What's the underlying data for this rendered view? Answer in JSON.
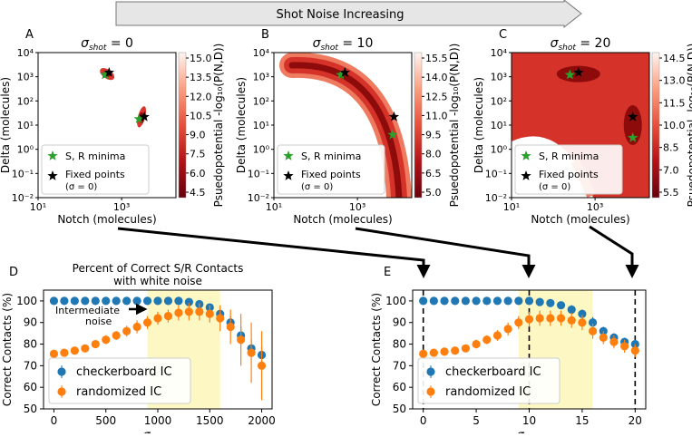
{
  "banner": {
    "label": "Shot Noise Increasing"
  },
  "heatmap_cbar_label": "Psuedopotential -log₁₀(P(N,D))",
  "heatmap_xlabel": "Notch (molecules)",
  "heatmap_ylabel": "Delta (molecules)",
  "heatmap_legend": {
    "sr": "S, R minima",
    "fixed": "Fixed points",
    "fixed_sub": "(σ = 0)"
  },
  "colors": {
    "blue": "#1f77b4",
    "orange": "#ff7f0e",
    "yellow": "#fdf7c3",
    "star_green": "#2ca02c",
    "star_black": "#000000",
    "heat_dark": "#8e0b0b",
    "heat_light": "#fde4d8"
  },
  "chart_data": [
    {
      "type": "heatmap",
      "panel": "A",
      "title": "σshot = 0",
      "xlabel": "Notch (molecules)",
      "ylabel": "Delta (molecules)",
      "x_ticks": [
        "10¹",
        "10³"
      ],
      "y_ticks": [
        "10⁻²",
        "10⁻¹",
        "10⁰",
        "10¹",
        "10²",
        "10³",
        "10⁴"
      ],
      "colorbar_ticks": [
        "15.0",
        "13.5",
        "12.0",
        "10.5",
        "9.0",
        "7.5",
        "6.0",
        "4.5"
      ],
      "sr_minima": [
        [
          400,
          1200
        ],
        [
          2600,
          18
        ]
      ],
      "fixed_points": [
        [
          500,
          1500
        ],
        [
          3500,
          22
        ]
      ]
    },
    {
      "type": "heatmap",
      "panel": "B",
      "title": "σshot = 10",
      "xlabel": "Notch (molecules)",
      "ylabel": "Delta (molecules)",
      "x_ticks": [
        "10¹",
        "10³"
      ],
      "y_ticks": [
        "10⁻²",
        "10⁻¹",
        "10⁰",
        "10¹",
        "10²",
        "10³",
        "10⁴"
      ],
      "colorbar_ticks": [
        "15.5",
        "14.0",
        "12.5",
        "11.0",
        "9.5",
        "8.0",
        "6.5",
        "5.0"
      ],
      "sr_minima": [
        [
          400,
          1200
        ],
        [
          7000,
          4
        ]
      ],
      "fixed_points": [
        [
          500,
          1500
        ],
        [
          7500,
          22
        ]
      ]
    },
    {
      "type": "heatmap",
      "panel": "C",
      "title": "σshot = 20",
      "xlabel": "Notch (molecules)",
      "ylabel": "Delta (molecules)",
      "x_ticks": [
        "10¹",
        "10³"
      ],
      "y_ticks": [
        "10⁻²",
        "10⁻¹",
        "10⁰",
        "10¹",
        "10²",
        "10³",
        "10⁴"
      ],
      "colorbar_ticks": [
        "14.5",
        "13.0",
        "11.5",
        "10.0",
        "8.5",
        "7.0",
        "5.5"
      ],
      "sr_minima": [
        [
          250,
          1200
        ],
        [
          8000,
          3
        ]
      ],
      "fixed_points": [
        [
          400,
          1500
        ],
        [
          8000,
          22
        ]
      ]
    },
    {
      "type": "scatter",
      "panel": "D",
      "title": "Percent of Correct S/R Contacts",
      "subtitle": "with white noise",
      "xlabel": "σwhite",
      "ylabel": "Correct Contacts (%)",
      "xlim": [
        -100,
        2100
      ],
      "ylim": [
        50,
        105
      ],
      "x_ticks": [
        0,
        500,
        1000,
        1500,
        2000
      ],
      "y_ticks": [
        50,
        60,
        70,
        80,
        90,
        100
      ],
      "shaded_region": [
        900,
        1600
      ],
      "annotation": [
        "Intermediate",
        "noise"
      ],
      "legend": [
        "checkerboard IC",
        "randomized IC"
      ],
      "series": [
        {
          "name": "checkerboard IC",
          "x": [
            0,
            100,
            200,
            300,
            400,
            500,
            600,
            700,
            800,
            900,
            1000,
            1100,
            1200,
            1300,
            1400,
            1500,
            1600,
            1700,
            1800,
            1900,
            2000
          ],
          "values": [
            100,
            100,
            100,
            100,
            100,
            100,
            100,
            100,
            100,
            100,
            100,
            100,
            100,
            99.5,
            98.5,
            97,
            94,
            90,
            84,
            78,
            75
          ],
          "err": [
            0,
            0,
            0,
            0,
            0,
            0,
            0,
            0,
            0,
            0,
            0,
            0,
            0,
            0.5,
            1,
            1.5,
            2,
            3,
            4,
            4,
            4
          ]
        },
        {
          "name": "randomized IC",
          "x": [
            0,
            100,
            200,
            300,
            400,
            500,
            600,
            700,
            800,
            900,
            1000,
            1100,
            1200,
            1300,
            1400,
            1500,
            1600,
            1700,
            1800,
            1900,
            2000
          ],
          "values": [
            75.5,
            76,
            77,
            78,
            80,
            82,
            84,
            86,
            88,
            90,
            92,
            93,
            94.5,
            95,
            95,
            94,
            92,
            88,
            82,
            76,
            70
          ],
          "err": [
            1,
            1,
            1,
            1,
            1.5,
            2,
            2,
            2.5,
            3,
            3,
            3,
            3,
            3.5,
            4,
            4,
            4,
            6,
            8,
            12,
            14,
            16
          ]
        }
      ]
    },
    {
      "type": "scatter",
      "panel": "E",
      "xlabel": "σshot",
      "ylabel": "Correct Contacts (%)",
      "xlim": [
        -1,
        21
      ],
      "ylim": [
        50,
        105
      ],
      "x_ticks": [
        0,
        5,
        10,
        15,
        20
      ],
      "y_ticks": [
        50,
        60,
        70,
        80,
        90,
        100
      ],
      "shaded_region": [
        9,
        16
      ],
      "marker_lines": [
        0,
        10,
        20
      ],
      "legend": [
        "checkerboard IC",
        "randomized IC"
      ],
      "series": [
        {
          "name": "checkerboard IC",
          "x": [
            0,
            1,
            2,
            3,
            4,
            5,
            6,
            7,
            8,
            9,
            10,
            11,
            12,
            13,
            14,
            15,
            16,
            17,
            18,
            19,
            20
          ],
          "values": [
            100,
            100,
            100,
            100,
            100,
            100,
            100,
            100,
            100,
            100,
            100,
            99.5,
            99,
            98,
            96,
            94,
            90,
            86,
            83,
            81,
            80
          ],
          "err": [
            0,
            0,
            0,
            0,
            0,
            0,
            0,
            0,
            0,
            0,
            0,
            0.5,
            1,
            1.5,
            2,
            2,
            2.5,
            2,
            2,
            2,
            2
          ]
        },
        {
          "name": "randomized IC",
          "x": [
            0,
            1,
            2,
            3,
            4,
            5,
            6,
            7,
            8,
            9,
            10,
            11,
            12,
            13,
            14,
            15,
            16,
            17,
            18,
            19,
            20
          ],
          "values": [
            75.5,
            76,
            76.5,
            77,
            78,
            80,
            82,
            84,
            87,
            90,
            91.5,
            92,
            92,
            92,
            91,
            90,
            86,
            83,
            81,
            79,
            77
          ],
          "err": [
            1,
            1,
            1,
            1,
            1.5,
            2,
            2,
            2.5,
            3,
            3,
            3.5,
            3.5,
            3.5,
            3.5,
            3.5,
            3.5,
            3.5,
            3,
            3,
            3,
            3
          ]
        }
      ]
    }
  ]
}
